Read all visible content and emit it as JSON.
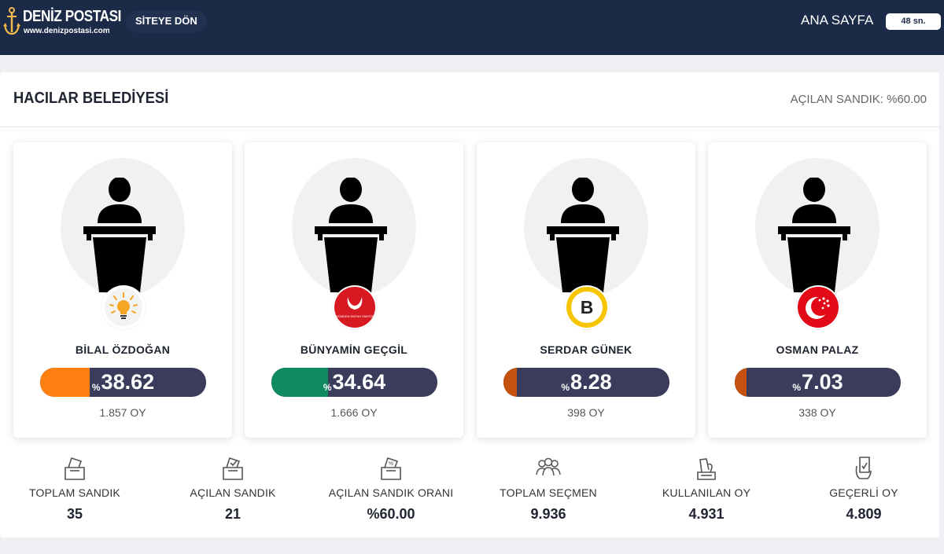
{
  "header": {
    "logo_title": "DENİZ POSTASI",
    "logo_url": "www.denizpostasi.com",
    "site_button": "SİTEYE DÖN",
    "home_link": "ANA SAYFA",
    "timer": "48 sn."
  },
  "panel": {
    "title": "HACILAR BELEDİYESİ",
    "opened_ratio": "AÇILAN SANDIK: %60.00"
  },
  "candidates": [
    {
      "name": "BİLAL ÖZDOĞAN",
      "percent_sign": "%",
      "percent": "38.62",
      "votes": "1.857 OY",
      "bar_color": "#ff7f11",
      "bar_fraction": 0.3862,
      "party_icon": "akp-lightbulb-icon"
    },
    {
      "name": "BÜNYAMİN GEÇGİL",
      "percent_sign": "%",
      "percent": "34.64",
      "votes": "1.666 OY",
      "bar_color": "#108a62",
      "bar_fraction": 0.3464,
      "party_icon": "yeniden-refah-icon",
      "party_text": "YENİDEN REFAH PARTİSİ"
    },
    {
      "name": "SERDAR GÜNEK",
      "percent_sign": "%",
      "percent": "8.28",
      "votes": "398 OY",
      "bar_color": "#c4510d",
      "bar_fraction": 0.0828,
      "party_icon": "b-letter-icon",
      "party_text": "B"
    },
    {
      "name": "OSMAN PALAZ",
      "percent_sign": "%",
      "percent": "7.03",
      "votes": "338 OY",
      "bar_color": "#c4510d",
      "bar_fraction": 0.0703,
      "party_icon": "crescent-star-icon"
    }
  ],
  "stats": [
    {
      "label": "TOPLAM SANDIK",
      "value": "35",
      "icon": "ballot-box-icon"
    },
    {
      "label": "AÇILAN SANDIK",
      "value": "21",
      "icon": "ballot-box-check-icon"
    },
    {
      "label": "AÇILAN SANDIK ORANI",
      "value": "%60.00",
      "icon": "ballot-box-percent-icon"
    },
    {
      "label": "TOPLAM SEÇMEN",
      "value": "9.936",
      "icon": "voters-icon"
    },
    {
      "label": "KULLANILAN OY",
      "value": "4.931",
      "icon": "vote-cast-icon"
    },
    {
      "label": "GEÇERLİ OY",
      "value": "4.809",
      "icon": "valid-vote-icon"
    }
  ],
  "colors": {
    "header_bg": "#1b2a47",
    "bar_track": "#3b3b5c",
    "akp_yellow": "#f5a623",
    "refah_red": "#d71a21",
    "b_yellow": "#f7c600",
    "crescent_red": "#e30a17"
  }
}
